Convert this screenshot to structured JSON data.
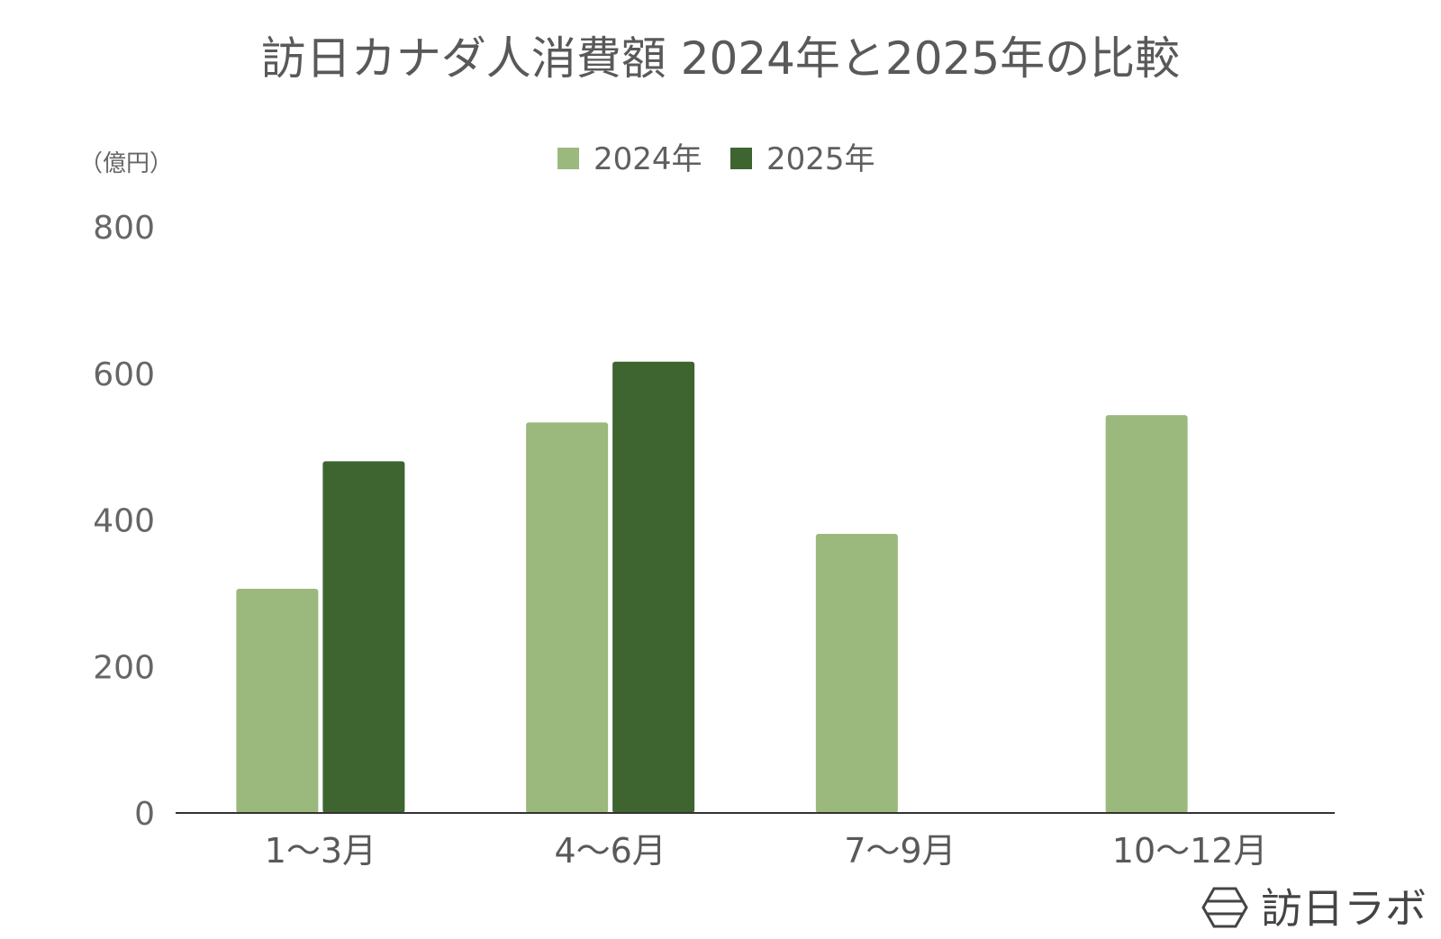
{
  "chart_data": {
    "type": "bar",
    "title": "訪日カナダ人消費額 2024年と2025年の比較",
    "ylabel": "（億円）",
    "xlabel": "",
    "categories": [
      "1〜3月",
      "4〜6月",
      "7〜9月",
      "10〜12月"
    ],
    "series": [
      {
        "name": "2024年",
        "color": "#9bb87d",
        "values": [
          306,
          533,
          381,
          543
        ]
      },
      {
        "name": "2025年",
        "color": "#3e6530",
        "values": [
          480,
          616,
          null,
          null
        ]
      }
    ],
    "ylim": [
      0,
      800
    ],
    "yticks": [
      0,
      200,
      400,
      600,
      800
    ],
    "grid": false,
    "legend": "top-center"
  },
  "logo": {
    "text": "訪日ラボ",
    "icon": "hexagon-logo-icon"
  }
}
